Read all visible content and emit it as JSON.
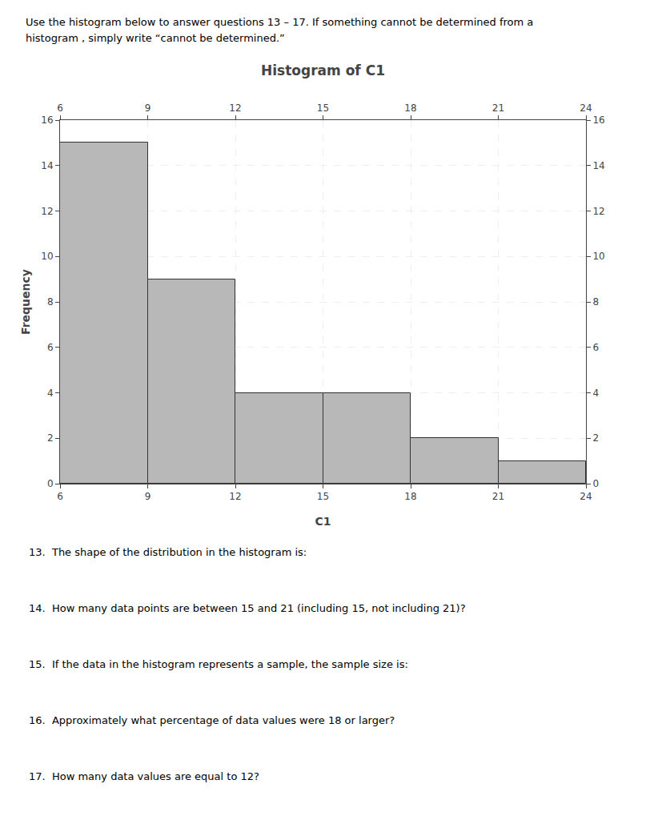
{
  "chart_data": {
    "type": "histogram",
    "title": "Histogram of C1",
    "x_label": "C1",
    "y_label": "Frequency",
    "bins": [
      6,
      9,
      12,
      15,
      18,
      21,
      24
    ],
    "values": [
      15,
      9,
      4,
      4,
      2,
      1
    ],
    "color": "#b8b8b8",
    "xlim": [
      6,
      24
    ],
    "xticks": [
      6,
      9,
      12,
      15,
      18,
      21,
      24
    ],
    "ylim": [
      0,
      16
    ],
    "yticks": [
      0,
      2,
      4,
      6,
      8,
      10,
      12,
      14,
      16
    ],
    "grid": true,
    "annotations": [
      "Use the histogram below to answer questions 13 – 17. If something cannot be determined from a",
      "histogram , simply write “cannot be determined.”",
      "13.  The shape of the distribution in the histogram is:",
      "14.  How many data points are between 15 and 21 (including 15, not including 21)?",
      "15.  If the data in the histogram represents a sample, the sample size is:",
      "16.  Approximately what percentage of data values were 18 or larger?",
      "17.  How many data values are equal to 12?"
    ]
  }
}
